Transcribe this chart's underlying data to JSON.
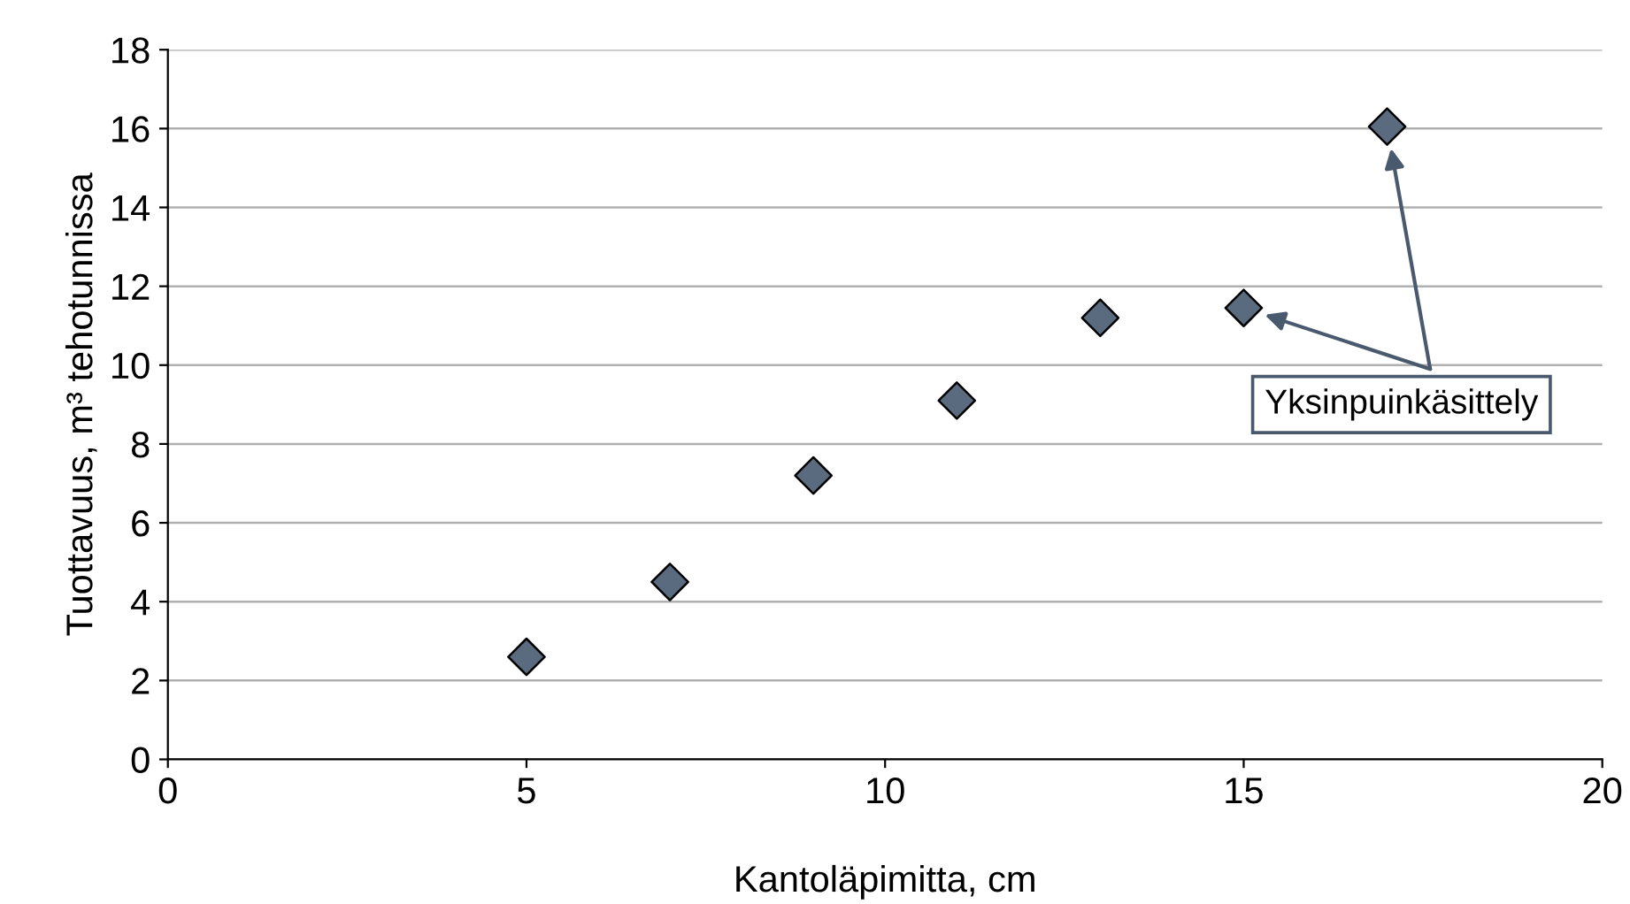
{
  "chart_data": {
    "type": "scatter",
    "xlabel": "Kantoläpimitta, cm",
    "ylabel": "Tuottavuus, m³ tehotunnissa",
    "x": [
      5,
      7,
      9,
      11,
      13,
      15,
      17
    ],
    "series": [
      {
        "color": "#5b6b7f",
        "values": [
          2.6,
          4.5,
          7.2,
          9.1,
          11.2,
          11.45,
          16.05
        ]
      }
    ],
    "xlim": [
      0,
      20
    ],
    "xticks": [
      0,
      5,
      10,
      15,
      20
    ],
    "ylim": [
      0,
      18
    ],
    "yticks": [
      0,
      2,
      4,
      6,
      8,
      10,
      12,
      14,
      16,
      18
    ],
    "grid": "y",
    "marker": "diamond",
    "legend": false,
    "annotations": [
      "Yksinpuinkäsittely"
    ]
  }
}
